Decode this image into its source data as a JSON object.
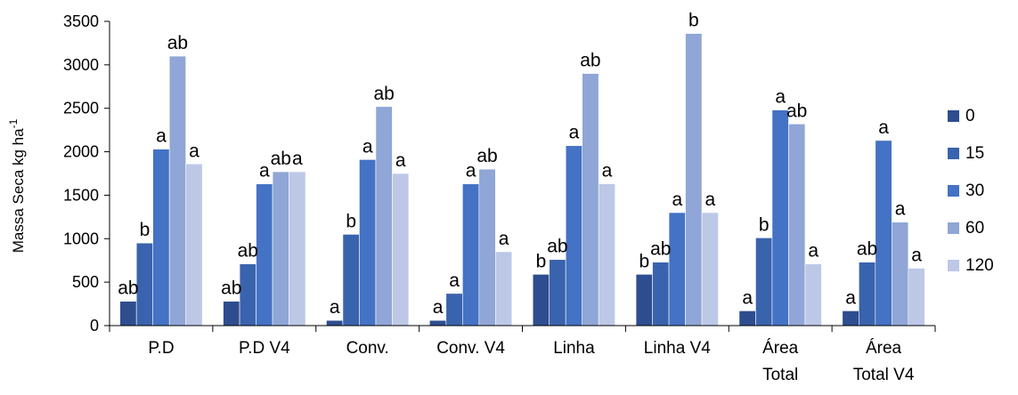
{
  "chart_data": {
    "type": "bar",
    "ylabel": "Massa Seca kg ha",
    "ylabel_sup": "-1",
    "ylim": [
      0,
      3500
    ],
    "yticks": [
      0,
      500,
      1000,
      1500,
      2000,
      2500,
      3000,
      3500
    ],
    "grid": false,
    "legend_position": "right",
    "categories": [
      [
        "P.D"
      ],
      [
        "P.D V4"
      ],
      [
        "Conv."
      ],
      [
        "Conv. V4"
      ],
      [
        "Linha"
      ],
      [
        "Linha V4"
      ],
      [
        "Área",
        "Total"
      ],
      [
        "Área",
        "Total V4"
      ]
    ],
    "series": [
      {
        "name": "0",
        "color": "#2e4d8f",
        "values": [
          280,
          280,
          60,
          60,
          590,
          590,
          170,
          170
        ],
        "labels": [
          "ab",
          "ab",
          "a",
          "a",
          "b",
          "b",
          "a",
          "a"
        ]
      },
      {
        "name": "15",
        "color": "#3a63ad",
        "values": [
          950,
          710,
          1050,
          370,
          760,
          730,
          1010,
          730
        ],
        "labels": [
          "b",
          "ab",
          "b",
          "a",
          "ab",
          "ab",
          "b",
          "ab"
        ]
      },
      {
        "name": "30",
        "color": "#4472c4",
        "values": [
          2030,
          1630,
          1910,
          1630,
          2070,
          1300,
          2480,
          2130
        ],
        "labels": [
          "a",
          "a",
          "a",
          "a",
          "a",
          "a",
          "a",
          "a"
        ]
      },
      {
        "name": "60",
        "color": "#8fa6d6",
        "values": [
          3100,
          1770,
          2520,
          1800,
          2900,
          3360,
          2320,
          1190
        ],
        "labels": [
          "ab",
          "ab",
          "ab",
          "ab",
          "ab",
          "b",
          "ab",
          "a"
        ]
      },
      {
        "name": "120",
        "color": "#bcc8e6",
        "values": [
          1860,
          1770,
          1750,
          850,
          1630,
          1300,
          710,
          660
        ],
        "labels": [
          "a",
          "a",
          "a",
          "a",
          "a",
          "a",
          "a",
          "a"
        ]
      }
    ]
  }
}
